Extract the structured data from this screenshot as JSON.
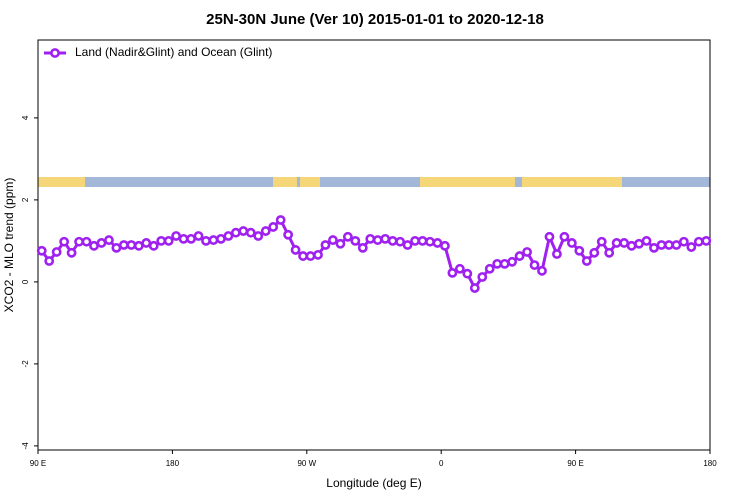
{
  "chart_data": {
    "type": "line",
    "title": "25N-30N June (Ver 10)   2015-01-01 to 2020-12-18",
    "x_label": "Longitude (deg E)",
    "y_label": "XCO2 - MLO trend (ppm)",
    "x": [
      92.5,
      97.5,
      102.5,
      107.5,
      112.5,
      117.5,
      122.5,
      127.5,
      132.5,
      137.5,
      142.5,
      147.5,
      152.5,
      157.5,
      162.5,
      167.5,
      172.5,
      177.5,
      182.5,
      187.5,
      192.5,
      197.5,
      202.5,
      207.5,
      212.5,
      217.5,
      222.5,
      227.5,
      232.5,
      237.5,
      242.5,
      247.5,
      252.5,
      257.5,
      262.5,
      267.5,
      272.5,
      277.5,
      282.5,
      287.5,
      292.5,
      297.5,
      302.5,
      307.5,
      312.5,
      317.5,
      322.5,
      327.5,
      332.5,
      337.5,
      342.5,
      347.5,
      352.5,
      357.5,
      362.5,
      367.5,
      372.5,
      377.5,
      382.5,
      387.5,
      392.5,
      397.5,
      402.5,
      407.5,
      412.5,
      417.5,
      422.5,
      427.5,
      432.5,
      437.5,
      442.5,
      447.5,
      452.5,
      457.5,
      462.5,
      467.5,
      472.5,
      477.5,
      482.5,
      487.5,
      492.5,
      497.5,
      502.5,
      507.5,
      512.5,
      517.5,
      522.5,
      527.5,
      532.5,
      537.5
    ],
    "series": [
      {
        "name": "Land (Nadir&Glint) and Ocean (Glint)",
        "color": "#a020f0",
        "values": [
          0.76,
          0.51,
          0.73,
          0.98,
          0.71,
          0.98,
          0.98,
          0.88,
          0.95,
          1.02,
          0.83,
          0.9,
          0.9,
          0.88,
          0.95,
          0.88,
          1.0,
          1.0,
          1.12,
          1.05,
          1.05,
          1.12,
          1.0,
          1.02,
          1.05,
          1.12,
          1.2,
          1.24,
          1.2,
          1.12,
          1.24,
          1.34,
          1.51,
          1.15,
          0.78,
          0.63,
          0.63,
          0.66,
          0.9,
          1.02,
          0.93,
          1.1,
          1.0,
          0.83,
          1.05,
          1.02,
          1.05,
          1.0,
          0.98,
          0.9,
          1.0,
          1.0,
          0.98,
          0.95,
          0.88,
          0.22,
          0.32,
          0.2,
          -0.15,
          0.12,
          0.32,
          0.44,
          0.44,
          0.49,
          0.63,
          0.73,
          0.41,
          0.27,
          1.1,
          0.68,
          1.1,
          0.95,
          0.76,
          0.51,
          0.71,
          0.98,
          0.71,
          0.95,
          0.95,
          0.88,
          0.93,
          1.0,
          0.83,
          0.9,
          0.9,
          0.9,
          0.98,
          0.85,
          0.98,
          1.0
        ]
      }
    ],
    "xlim": [
      90,
      540
    ],
    "xticks": [
      {
        "value": 90,
        "label": "90 E"
      },
      {
        "value": 180,
        "label": "180"
      },
      {
        "value": 270,
        "label": "90 W"
      },
      {
        "value": 360,
        "label": "0"
      },
      {
        "value": 450,
        "label": "90 E"
      },
      {
        "value": 540,
        "label": "180"
      }
    ],
    "ylim": [
      -4.1,
      5.9
    ],
    "yticks": [
      -4,
      -2,
      0,
      2,
      4
    ],
    "legend": "top-left"
  }
}
